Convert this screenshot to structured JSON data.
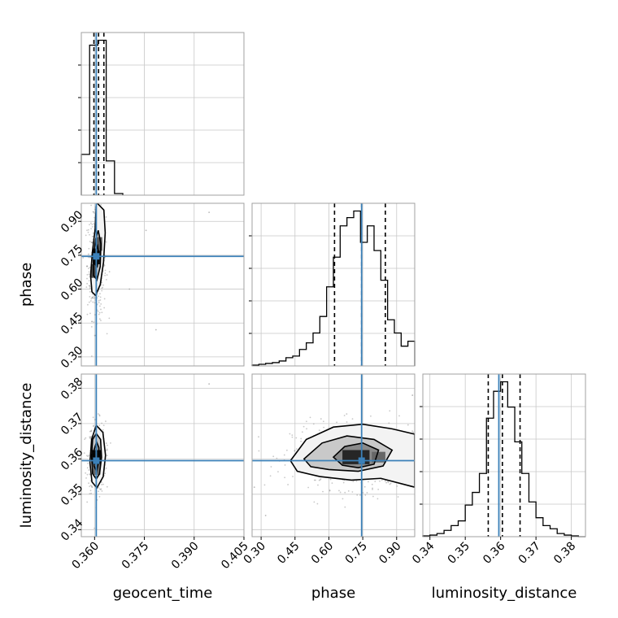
{
  "chart_data": {
    "type": "corner",
    "parameters": [
      "geocent_time",
      "phase",
      "luminosity_distance"
    ],
    "colors": {
      "truth": "#3b80b8",
      "hist": "#000000",
      "grid": "#c8c8c8",
      "frame": "#a0a0a0",
      "contour": "#000000",
      "scatter": "#9a9a9a"
    },
    "truths": {
      "geocent_time": 0.3605,
      "phase": 0.745,
      "luminosity_distance": 0.3595
    },
    "ranges": {
      "geocent_time": [
        0.356,
        0.405
      ],
      "phase": [
        0.26,
        0.98
      ],
      "luminosity_distance": [
        0.338,
        0.384
      ]
    },
    "ticks": {
      "geocent_time": {
        "values": [
          0.36,
          0.375,
          0.39,
          0.405
        ],
        "labels": [
          "0.360",
          "0.375",
          "0.390",
          "0.405"
        ]
      },
      "phase": {
        "values": [
          0.3,
          0.45,
          0.6,
          0.75,
          0.9
        ],
        "labels": [
          "0.30",
          "0.45",
          "0.60",
          "0.75",
          "0.90"
        ]
      },
      "luminosity_distance": {
        "values": [
          0.34,
          0.35,
          0.36,
          0.37,
          0.38
        ],
        "labels": [
          "0.34",
          "0.35",
          "0.36",
          "0.37",
          "0.38"
        ]
      }
    },
    "diag_quantiles": {
      "geocent_time": [
        0.3598,
        0.3612,
        0.3628
      ],
      "phase": [
        0.625,
        0.745,
        0.85
      ],
      "luminosity_distance": [
        0.3565,
        0.3605,
        0.3655
      ]
    },
    "diag_hist": {
      "geocent_time": {
        "edges": [
          0.356,
          0.3585,
          0.361,
          0.3635,
          0.366,
          0.3685
        ],
        "counts": [
          0.25,
          0.92,
          0.95,
          0.21,
          0.01
        ]
      },
      "phase": {
        "edges": [
          0.26,
          0.29,
          0.32,
          0.35,
          0.38,
          0.41,
          0.44,
          0.47,
          0.5,
          0.53,
          0.56,
          0.59,
          0.62,
          0.65,
          0.68,
          0.71,
          0.74,
          0.77,
          0.8,
          0.83,
          0.86,
          0.89,
          0.92,
          0.95,
          0.98
        ],
        "counts": [
          0.005,
          0.01,
          0.015,
          0.02,
          0.03,
          0.05,
          0.06,
          0.1,
          0.14,
          0.2,
          0.3,
          0.48,
          0.66,
          0.85,
          0.9,
          0.94,
          0.75,
          0.85,
          0.7,
          0.52,
          0.28,
          0.2,
          0.12,
          0.15
        ]
      },
      "luminosity_distance": {
        "edges": [
          0.338,
          0.34,
          0.342,
          0.344,
          0.346,
          0.348,
          0.35,
          0.352,
          0.354,
          0.356,
          0.358,
          0.36,
          0.362,
          0.364,
          0.366,
          0.368,
          0.37,
          0.372,
          0.374,
          0.376,
          0.378,
          0.38,
          0.382,
          0.384
        ],
        "counts": [
          0.005,
          0.01,
          0.02,
          0.04,
          0.07,
          0.1,
          0.2,
          0.28,
          0.4,
          0.75,
          0.92,
          0.98,
          0.82,
          0.6,
          0.4,
          0.22,
          0.12,
          0.07,
          0.05,
          0.02,
          0.01,
          0.005,
          0.0
        ]
      }
    },
    "panels_2d": [
      {
        "x": "geocent_time",
        "y": "phase",
        "levels": [
          [
            [
              0.3607,
              0.982
            ],
            [
              0.3628,
              0.95
            ],
            [
              0.3632,
              0.85
            ],
            [
              0.3627,
              0.72
            ],
            [
              0.3617,
              0.62
            ],
            [
              0.3603,
              0.572
            ],
            [
              0.3592,
              0.588
            ],
            [
              0.3588,
              0.66
            ],
            [
              0.3593,
              0.76
            ],
            [
              0.3602,
              0.87
            ],
            [
              0.3605,
              0.98
            ]
          ],
          [
            [
              0.3611,
              0.86
            ],
            [
              0.3619,
              0.8
            ],
            [
              0.3617,
              0.7
            ],
            [
              0.3607,
              0.64
            ],
            [
              0.3597,
              0.66
            ],
            [
              0.3596,
              0.74
            ],
            [
              0.3603,
              0.82
            ]
          ],
          [
            [
              0.3609,
              0.79
            ],
            [
              0.3613,
              0.75
            ],
            [
              0.3608,
              0.7
            ],
            [
              0.3601,
              0.71
            ],
            [
              0.3601,
              0.76
            ]
          ]
        ],
        "bins": [
          {
            "x": 0.3606,
            "y": 0.745,
            "w": 0.0024,
            "h": 0.07,
            "d": 0.9
          },
          {
            "x": 0.3598,
            "y": 0.68,
            "w": 0.0018,
            "h": 0.06,
            "d": 0.7
          },
          {
            "x": 0.3614,
            "y": 0.8,
            "w": 0.0018,
            "h": 0.06,
            "d": 0.65
          }
        ],
        "scatter": {
          "cx": 0.3606,
          "cy": 0.71,
          "sx": 0.0014,
          "sy": 0.12,
          "n": 400,
          "outliers": [
            [
              0.3945,
              0.94
            ],
            [
              0.3705,
              0.6
            ],
            [
              0.3755,
              0.86
            ],
            [
              0.3785,
              0.42
            ]
          ]
        }
      },
      {
        "x": "geocent_time",
        "y": "luminosity_distance",
        "levels": [
          [
            [
              0.3605,
              0.3695
            ],
            [
              0.3625,
              0.3675
            ],
            [
              0.3633,
              0.361
            ],
            [
              0.3626,
              0.355
            ],
            [
              0.3607,
              0.3518
            ],
            [
              0.3592,
              0.3535
            ],
            [
              0.3586,
              0.359
            ],
            [
              0.3591,
              0.3655
            ]
          ],
          [
            [
              0.3605,
              0.3672
            ],
            [
              0.3618,
              0.3655
            ],
            [
              0.3621,
              0.3605
            ],
            [
              0.3615,
              0.3558
            ],
            [
              0.3605,
              0.3543
            ],
            [
              0.3594,
              0.3558
            ],
            [
              0.3591,
              0.3605
            ],
            [
              0.3594,
              0.3655
            ]
          ],
          [
            [
              0.3606,
              0.3648
            ],
            [
              0.3613,
              0.3632
            ],
            [
              0.3614,
              0.36
            ],
            [
              0.3606,
              0.3565
            ],
            [
              0.3598,
              0.358
            ],
            [
              0.3598,
              0.3625
            ]
          ]
        ],
        "bins": [
          {
            "x": 0.3606,
            "y": 0.3605,
            "w": 0.0026,
            "h": 0.004,
            "d": 0.95
          },
          {
            "x": 0.3606,
            "y": 0.357,
            "w": 0.0022,
            "h": 0.003,
            "d": 0.6
          }
        ],
        "scatter": {
          "cx": 0.3607,
          "cy": 0.3605,
          "sx": 0.0013,
          "sy": 0.005,
          "n": 380,
          "outliers": [
            [
              0.3945,
              0.3812
            ]
          ]
        }
      },
      {
        "x": "phase",
        "y": "luminosity_distance",
        "levels": [
          [
            [
              0.43,
              0.3595
            ],
            [
              0.5,
              0.3655
            ],
            [
              0.62,
              0.369
            ],
            [
              0.75,
              0.3698
            ],
            [
              0.88,
              0.3685
            ],
            [
              0.98,
              0.367
            ],
            [
              0.98,
              0.352
            ],
            [
              0.83,
              0.3545
            ],
            [
              0.7,
              0.354
            ],
            [
              0.56,
              0.355
            ],
            [
              0.46,
              0.3565
            ]
          ],
          [
            [
              0.49,
              0.36
            ],
            [
              0.57,
              0.3645
            ],
            [
              0.68,
              0.3665
            ],
            [
              0.8,
              0.3655
            ],
            [
              0.88,
              0.3625
            ],
            [
              0.84,
              0.358
            ],
            [
              0.73,
              0.3565
            ],
            [
              0.6,
              0.357
            ],
            [
              0.52,
              0.3578
            ]
          ],
          [
            [
              0.62,
              0.3605
            ],
            [
              0.67,
              0.3635
            ],
            [
              0.75,
              0.3645
            ],
            [
              0.82,
              0.3625
            ],
            [
              0.8,
              0.3585
            ],
            [
              0.73,
              0.3575
            ],
            [
              0.66,
              0.3582
            ]
          ]
        ],
        "bins": [
          {
            "x": 0.72,
            "y": 0.3605,
            "w": 0.12,
            "h": 0.004,
            "d": 0.85
          },
          {
            "x": 0.82,
            "y": 0.3605,
            "w": 0.06,
            "h": 0.003,
            "d": 0.6
          }
        ],
        "scatter": {
          "cx": 0.74,
          "cy": 0.3605,
          "sx": 0.15,
          "sy": 0.0045,
          "n": 650,
          "outliers": [
            [
              0.27,
              0.352
            ],
            [
              0.32,
              0.344
            ],
            [
              0.97,
              0.378
            ]
          ]
        }
      }
    ],
    "xlabels": [
      "geocent_time",
      "phase",
      "luminosity_distance"
    ],
    "ylabels": [
      "phase",
      "luminosity_distance"
    ]
  }
}
